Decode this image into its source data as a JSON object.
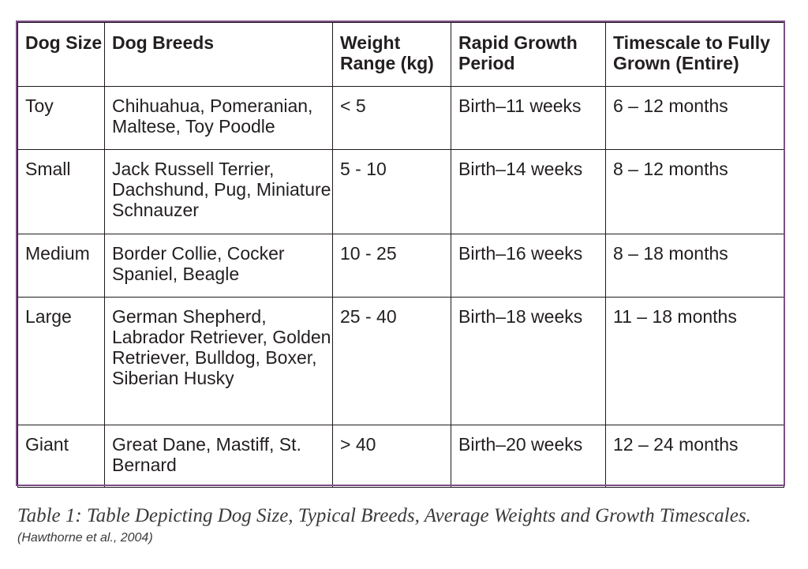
{
  "table": {
    "headers": [
      "Dog Size",
      "Dog Breeds",
      "Weight Range (kg)",
      "Rapid Growth Period",
      "Timescale to Fully Grown (Entire)"
    ],
    "rows": [
      [
        "Toy",
        "Chihuahua, Pomeranian, Maltese, Toy Poodle",
        "< 5",
        "Birth–11 weeks",
        "6 – 12 months"
      ],
      [
        "Small",
        "Jack Russell Terrier, Dachshund, Pug, Miniature Schnauzer",
        "5 - 10",
        "Birth–14 weeks",
        "8 – 12 months"
      ],
      [
        "Medium",
        "Border Collie, Cocker Spaniel, Beagle",
        "10 - 25",
        "Birth–16 weeks",
        "8 – 18 months"
      ],
      [
        "Large",
        "German Shepherd, Labrador Retriever, Golden Retriever, Bulldog, Boxer, Siberian Husky",
        "25 - 40",
        "Birth–18 weeks",
        "11 – 18 months"
      ],
      [
        "Giant",
        "Great Dane, Mastiff, St. Bernard",
        "> 40",
        "Birth–20 weeks",
        "12 – 24 months"
      ]
    ]
  },
  "caption": "Table 1: Table Depicting Dog Size, Typical Breeds, Average Weights and Growth Timescales.",
  "source": "(Hawthorne et al., 2004)",
  "colors": {
    "frame": "#7d4d87",
    "grid": "#1f1a1c",
    "text": "#231f20"
  }
}
